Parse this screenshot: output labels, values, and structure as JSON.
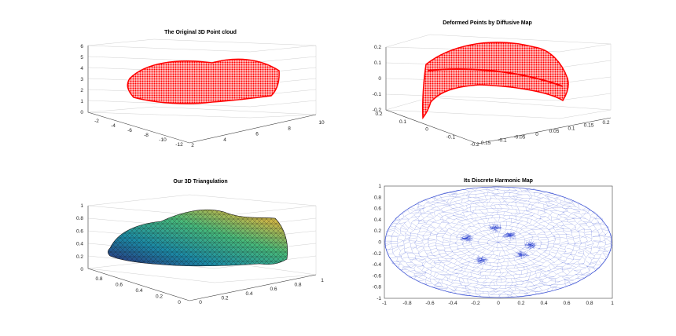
{
  "chart_data": [
    {
      "type": "scatter",
      "projection": "3d",
      "title": "The Original 3D Point cloud",
      "marker_color": "#ff0000",
      "x_ticks": [
        "2",
        "4",
        "6",
        "8",
        "10"
      ],
      "y_ticks": [
        "-2",
        "-4",
        "-6",
        "-8",
        "-10",
        "-12"
      ],
      "z_ticks": [
        "0",
        "1",
        "2",
        "3",
        "4",
        "5",
        "6"
      ],
      "xlim": [
        2,
        10
      ],
      "ylim": [
        -12,
        0
      ],
      "zlim": [
        0,
        6
      ],
      "grid": true
    },
    {
      "type": "scatter",
      "projection": "3d",
      "title": "Deformed Points by Diffusive Map",
      "marker_color": "#ff0000",
      "x_ticks": [
        "-0.15",
        "-0.1",
        "-0.05",
        "0",
        "0.05",
        "0.1",
        "0.15",
        "0.2"
      ],
      "y_ticks": [
        "0.2",
        "0.1",
        "0",
        "-0.1",
        "-0.2"
      ],
      "z_ticks": [
        "-0.2",
        "-0.1",
        "0",
        "0.1",
        "0.2"
      ],
      "xlim": [
        -0.15,
        0.2
      ],
      "ylim": [
        -0.2,
        0.2
      ],
      "zlim": [
        -0.2,
        0.2
      ],
      "grid": true
    },
    {
      "type": "surface",
      "projection": "3d",
      "title": "Our 3D Triangulation",
      "colormap": [
        "#3b2b8f",
        "#1f8fa8",
        "#4cbf7a",
        "#c9b34a",
        "#e8d24a"
      ],
      "x_ticks": [
        "0",
        "0.2",
        "0.4",
        "0.6",
        "0.8",
        "1"
      ],
      "y_ticks": [
        "0.8",
        "0.6",
        "0.4",
        "0.2",
        "0"
      ],
      "z_ticks": [
        "0",
        "0.2",
        "0.4",
        "0.6",
        "0.8",
        "1"
      ],
      "xlim": [
        0,
        1
      ],
      "ylim": [
        0,
        1
      ],
      "zlim": [
        0,
        1
      ],
      "grid": true
    },
    {
      "type": "mesh",
      "title": "Its Discrete Harmonic Map",
      "edge_color": "#1a33cc",
      "x_ticks": [
        "-1",
        "-0.8",
        "-0.6",
        "-0.4",
        "-0.2",
        "0",
        "0.2",
        "0.4",
        "0.6",
        "0.8",
        "1"
      ],
      "y_ticks": [
        "1",
        "0.8",
        "0.6",
        "0.4",
        "0.2",
        "0",
        "-0.2",
        "-0.4",
        "-0.6",
        "-0.8",
        "-1"
      ],
      "xlim": [
        -1,
        1
      ],
      "ylim": [
        -1,
        1
      ],
      "grid": false
    }
  ]
}
